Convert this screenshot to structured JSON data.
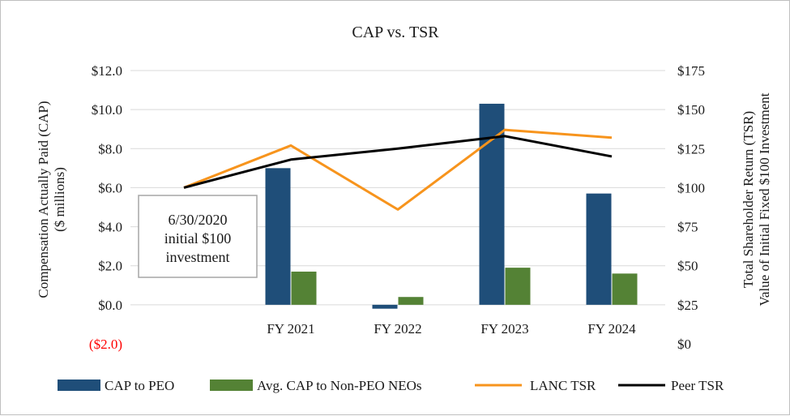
{
  "chart_data": {
    "type": "bar",
    "title": "CAP vs. TSR",
    "categories": [
      "",
      "FY 2021",
      "FY 2022",
      "FY 2023",
      "FY 2024"
    ],
    "ylabel": "Compensation Actually Paid (CAP)",
    "ylabel2": "($ millions)",
    "y2label": "Total Shareholder Return (TSR)",
    "y2label2": "Value of Initial Fixed $100 Investment",
    "ylim": [
      -2,
      12
    ],
    "y2lim": [
      0,
      175
    ],
    "yticks": [
      {
        "value": 12,
        "label": "$12.0"
      },
      {
        "value": 10,
        "label": "$10.0"
      },
      {
        "value": 8,
        "label": "$8.0"
      },
      {
        "value": 6,
        "label": "$6.0"
      },
      {
        "value": 4,
        "label": "$4.0"
      },
      {
        "value": 2,
        "label": "$2.0"
      },
      {
        "value": 0,
        "label": "$0.0"
      },
      {
        "value": -2,
        "label": "($2.0)"
      }
    ],
    "y2ticks": [
      {
        "value": 175,
        "label": "$175"
      },
      {
        "value": 150,
        "label": "$150"
      },
      {
        "value": 125,
        "label": "$125"
      },
      {
        "value": 100,
        "label": "$100"
      },
      {
        "value": 75,
        "label": "$75"
      },
      {
        "value": 50,
        "label": "$50"
      },
      {
        "value": 25,
        "label": "$25"
      },
      {
        "value": 0,
        "label": "$0"
      }
    ],
    "series": [
      {
        "name": "CAP to PEO",
        "kind": "bar",
        "axis": "left",
        "color": "#1f4e79",
        "values": [
          null,
          7.0,
          -0.2,
          10.3,
          5.7
        ]
      },
      {
        "name": "Avg. CAP to Non-PEO NEOs",
        "kind": "bar",
        "axis": "left",
        "color": "#548235",
        "values": [
          null,
          1.7,
          0.4,
          1.9,
          1.6
        ]
      },
      {
        "name": "LANC TSR",
        "kind": "line",
        "axis": "right",
        "color": "#f7941d",
        "values": [
          100,
          127,
          86,
          137,
          132
        ]
      },
      {
        "name": "Peer TSR",
        "kind": "line",
        "axis": "right",
        "color": "#000000",
        "values": [
          100,
          118,
          125,
          133,
          120
        ]
      }
    ],
    "negative_tick_color": "#ff0000",
    "annotation": {
      "lines": [
        "6/30/2020",
        "initial $100",
        "investment"
      ]
    }
  }
}
